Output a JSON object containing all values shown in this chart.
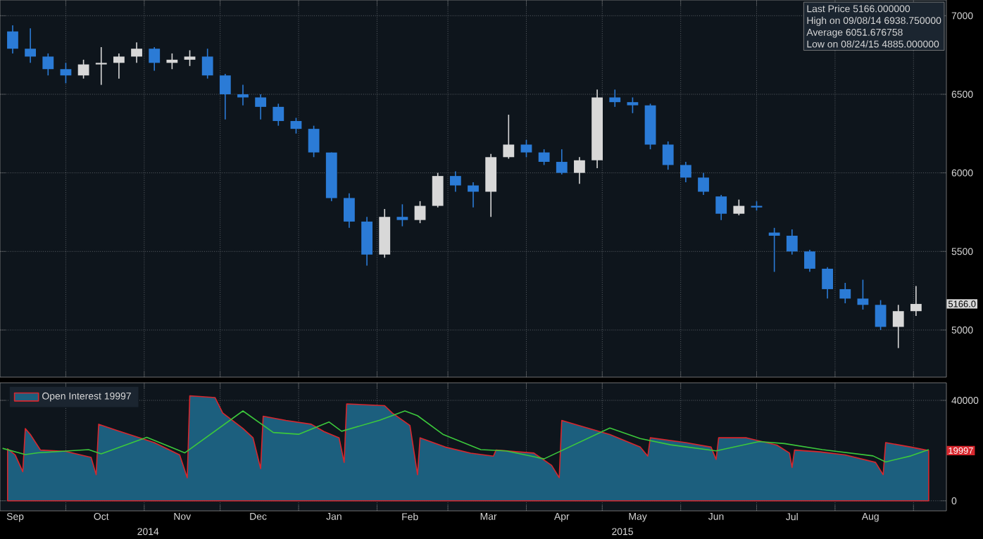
{
  "chart_data": [
    {
      "type": "candlestick",
      "xlim": [
        "2014-09-05",
        "2015-09-14"
      ],
      "ylim": [
        4700,
        7100
      ],
      "yticks": [
        5000,
        5500,
        6000,
        6500,
        7000
      ],
      "grid": true,
      "tick_labels": "y",
      "xticks": [
        {
          "value": "2014-10-01",
          "label": null
        },
        {
          "value": "2014-11-01",
          "label": null
        },
        {
          "value": "2014-12-01",
          "label": null
        },
        {
          "value": "2015-01-01",
          "label": null
        },
        {
          "value": "2015-02-01",
          "label": null
        },
        {
          "value": "2015-03-01",
          "label": null
        },
        {
          "value": "2015-04-01",
          "label": null
        },
        {
          "value": "2015-05-01",
          "label": null
        },
        {
          "value": "2015-06-01",
          "label": null
        },
        {
          "value": "2015-07-01",
          "label": null
        },
        {
          "value": "2015-08-01",
          "label": null
        },
        {
          "value": "2015-09-01",
          "label": null
        }
      ],
      "x": [
        "2014-09-10",
        "2014-09-17",
        "2014-09-24",
        "2014-10-01",
        "2014-10-08",
        "2014-10-15",
        "2014-10-22",
        "2014-10-29",
        "2014-11-05",
        "2014-11-12",
        "2014-11-19",
        "2014-11-26",
        "2014-12-03",
        "2014-12-10",
        "2014-12-17",
        "2014-12-24",
        "2014-12-31",
        "2015-01-07",
        "2015-01-14",
        "2015-01-21",
        "2015-01-28",
        "2015-02-04",
        "2015-02-11",
        "2015-02-18",
        "2015-02-25",
        "2015-03-04",
        "2015-03-11",
        "2015-03-18",
        "2015-03-25",
        "2015-04-01",
        "2015-04-08",
        "2015-04-15",
        "2015-04-22",
        "2015-04-29",
        "2015-05-06",
        "2015-05-13",
        "2015-05-20",
        "2015-05-27",
        "2015-06-03",
        "2015-06-10",
        "2015-06-17",
        "2015-06-24",
        "2015-07-01",
        "2015-07-08",
        "2015-07-15",
        "2015-07-22",
        "2015-07-29",
        "2015-08-05",
        "2015-08-12",
        "2015-08-19",
        "2015-08-26",
        "2015-09-02"
      ],
      "ohlc": [
        [
          6900,
          6938.75,
          6760,
          6790
        ],
        [
          6790,
          6920,
          6700,
          6740
        ],
        [
          6740,
          6760,
          6620,
          6660
        ],
        [
          6660,
          6700,
          6570,
          6620
        ],
        [
          6620,
          6720,
          6600,
          6690
        ],
        [
          6690,
          6800,
          6560,
          6700
        ],
        [
          6700,
          6760,
          6600,
          6740
        ],
        [
          6740,
          6830,
          6700,
          6790
        ],
        [
          6790,
          6800,
          6650,
          6700
        ],
        [
          6700,
          6760,
          6660,
          6720
        ],
        [
          6720,
          6780,
          6680,
          6740
        ],
        [
          6740,
          6790,
          6600,
          6620
        ],
        [
          6620,
          6630,
          6340,
          6500
        ],
        [
          6500,
          6560,
          6430,
          6480
        ],
        [
          6480,
          6500,
          6340,
          6420
        ],
        [
          6420,
          6440,
          6300,
          6330
        ],
        [
          6330,
          6350,
          6250,
          6280
        ],
        [
          6280,
          6300,
          6100,
          6130
        ],
        [
          6130,
          6130,
          5820,
          5840
        ],
        [
          5840,
          5870,
          5650,
          5690
        ],
        [
          5690,
          5720,
          5410,
          5480
        ],
        [
          5480,
          5770,
          5460,
          5720
        ],
        [
          5720,
          5800,
          5660,
          5700
        ],
        [
          5700,
          5820,
          5680,
          5790
        ],
        [
          5790,
          6000,
          5780,
          5980
        ],
        [
          5980,
          6010,
          5880,
          5920
        ],
        [
          5920,
          5940,
          5780,
          5880
        ],
        [
          5880,
          6120,
          5720,
          6100
        ],
        [
          6100,
          6370,
          6090,
          6180
        ],
        [
          6180,
          6210,
          6100,
          6130
        ],
        [
          6130,
          6150,
          6050,
          6070
        ],
        [
          6070,
          6150,
          5990,
          6000
        ],
        [
          6000,
          6100,
          5930,
          6080
        ],
        [
          6080,
          6530,
          6030,
          6480
        ],
        [
          6480,
          6530,
          6420,
          6450
        ],
        [
          6450,
          6480,
          6380,
          6430
        ],
        [
          6430,
          6440,
          6150,
          6180
        ],
        [
          6180,
          6200,
          6020,
          6050
        ],
        [
          6050,
          6070,
          5940,
          5970
        ],
        [
          5970,
          6000,
          5860,
          5880
        ],
        [
          5850,
          5860,
          5700,
          5740
        ],
        [
          5740,
          5830,
          5730,
          5790
        ],
        [
          5790,
          5820,
          5760,
          5780
        ],
        [
          5620,
          5650,
          5370,
          5600
        ],
        [
          5600,
          5640,
          5480,
          5500
        ],
        [
          5500,
          5510,
          5370,
          5390
        ],
        [
          5390,
          5400,
          5200,
          5260
        ],
        [
          5260,
          5300,
          5170,
          5200
        ],
        [
          5200,
          5320,
          5130,
          5160
        ],
        [
          5160,
          5190,
          5000,
          5020
        ],
        [
          5020,
          5160,
          4885,
          5120
        ],
        [
          5120,
          5280,
          5090,
          5166
        ]
      ],
      "colors": [
        "#2b7bd6",
        "#2b7bd6",
        "#2b7bd6",
        "#2b7bd6",
        "#d8d8d8",
        "#d8d8d8",
        "#d8d8d8",
        "#d8d8d8",
        "#2b7bd6",
        "#d8d8d8",
        "#d8d8d8",
        "#2b7bd6",
        "#2b7bd6",
        "#2b7bd6",
        "#2b7bd6",
        "#2b7bd6",
        "#2b7bd6",
        "#2b7bd6",
        "#2b7bd6",
        "#2b7bd6",
        "#2b7bd6",
        "#d8d8d8",
        "#2b7bd6",
        "#d8d8d8",
        "#d8d8d8",
        "#2b7bd6",
        "#2b7bd6",
        "#d8d8d8",
        "#d8d8d8",
        "#2b7bd6",
        "#2b7bd6",
        "#2b7bd6",
        "#d8d8d8",
        "#d8d8d8",
        "#2b7bd6",
        "#2b7bd6",
        "#2b7bd6",
        "#2b7bd6",
        "#2b7bd6",
        "#2b7bd6",
        "#2b7bd6",
        "#d8d8d8",
        "#2b7bd6",
        "#2b7bd6",
        "#2b7bd6",
        "#2b7bd6",
        "#2b7bd6",
        "#2b7bd6",
        "#2b7bd6",
        "#2b7bd6",
        "#d8d8d8",
        "#d8d8d8"
      ],
      "annotations": [
        "Last Price 5166.000000",
        "High on 09/08/14 6938.750000",
        "Average 6051.676758",
        "Low on 08/24/15 4885.000000",
        {
          "text": "5166.0",
          "y": 5166
        }
      ]
    },
    {
      "type": "area",
      "xlim": [
        "2014-09-05",
        "2015-09-14"
      ],
      "ylim": [
        -4000,
        47000
      ],
      "yticks": [
        0,
        40000
      ],
      "grid": true,
      "legend": "top left",
      "xticks": [
        {
          "value": "2014-09-11",
          "label": "Sep"
        },
        {
          "value": "2014-10-01",
          "label": null
        },
        {
          "value": "2014-10-15",
          "label": "Oct"
        },
        {
          "value": "2014-11-01",
          "label": null
        },
        {
          "value": "2014-11-16",
          "label": "Nov"
        },
        {
          "value": "2014-12-01",
          "label": null
        },
        {
          "value": "2014-12-16",
          "label": "Dec"
        },
        {
          "value": "2015-01-01",
          "label": null
        },
        {
          "value": "2015-01-15",
          "label": "Jan"
        },
        {
          "value": "2015-02-01",
          "label": null
        },
        {
          "value": "2015-02-14",
          "label": "Feb"
        },
        {
          "value": "2015-03-01",
          "label": null
        },
        {
          "value": "2015-03-17",
          "label": "Mar"
        },
        {
          "value": "2015-04-01",
          "label": null
        },
        {
          "value": "2015-04-15",
          "label": "Apr"
        },
        {
          "value": "2015-05-01",
          "label": null
        },
        {
          "value": "2015-05-15",
          "label": "May"
        },
        {
          "value": "2015-06-01",
          "label": null
        },
        {
          "value": "2015-06-15",
          "label": "Jun"
        },
        {
          "value": "2015-07-01",
          "label": null
        },
        {
          "value": "2015-07-15",
          "label": "Jul"
        },
        {
          "value": "2015-08-01",
          "label": null
        },
        {
          "value": "2015-08-15",
          "label": "Aug"
        },
        {
          "value": "2015-09-01",
          "label": null
        }
      ],
      "series": [
        {
          "name": "Open Interest 19997",
          "color": "#d8272e",
          "x": [
            "2014-09-08",
            "2014-09-11",
            "2014-09-14",
            "2014-09-15",
            "2014-09-17",
            "2014-09-21",
            "2014-10-01",
            "2014-10-11",
            "2014-10-13",
            "2014-10-14",
            "2014-10-21",
            "2014-11-05",
            "2014-11-15",
            "2014-11-18",
            "2014-11-19",
            "2014-11-29",
            "2014-12-02",
            "2014-12-10",
            "2014-12-14",
            "2014-12-17",
            "2014-12-18",
            "2014-12-27",
            "2015-01-06",
            "2015-01-11",
            "2015-01-17",
            "2015-01-19",
            "2015-01-20",
            "2015-02-04",
            "2015-02-07",
            "2015-02-14",
            "2015-02-17",
            "2015-02-18",
            "2015-02-28",
            "2015-03-10",
            "2015-03-19",
            "2015-03-20",
            "2015-04-04",
            "2015-04-11",
            "2015-04-14",
            "2015-04-15",
            "2015-04-23",
            "2015-05-04",
            "2015-05-16",
            "2015-05-19",
            "2015-05-20",
            "2015-06-03",
            "2015-06-13",
            "2015-06-15",
            "2015-06-16",
            "2015-06-27",
            "2015-07-09",
            "2015-07-14",
            "2015-07-15",
            "2015-07-16",
            "2015-07-26",
            "2015-08-05",
            "2015-08-17",
            "2015-08-20",
            "2015-08-21",
            "2015-08-31",
            "2015-09-07"
          ],
          "values": [
            20700,
            18300,
            11600,
            28800,
            26400,
            20200,
            19700,
            17300,
            10400,
            30500,
            28100,
            23200,
            18300,
            9200,
            41800,
            41100,
            35000,
            28800,
            25100,
            12800,
            33700,
            32000,
            30500,
            27600,
            25100,
            15300,
            38600,
            37900,
            35000,
            30000,
            10400,
            25100,
            21400,
            19000,
            17800,
            20200,
            19000,
            14100,
            9200,
            32000,
            29600,
            26400,
            21400,
            17800,
            25100,
            23200,
            21400,
            16500,
            25100,
            25100,
            22200,
            19000,
            13300,
            20200,
            19500,
            18300,
            15300,
            10400,
            23200,
            21400,
            20000
          ]
        },
        {
          "type": "line",
          "color": "#3cc83c",
          "x": [
            "2014-09-06",
            "2014-09-15",
            "2014-09-20",
            "2014-10-10",
            "2014-10-15",
            "2014-11-02",
            "2014-11-17",
            "2014-12-10",
            "2014-12-22",
            "2015-01-01",
            "2015-01-13",
            "2015-01-18",
            "2015-02-02",
            "2015-02-12",
            "2015-02-17",
            "2015-02-27",
            "2015-03-14",
            "2015-03-24",
            "2015-04-08",
            "2015-05-04",
            "2015-05-16",
            "2015-05-28",
            "2015-06-15",
            "2015-07-02",
            "2015-07-12",
            "2015-07-27",
            "2015-08-16",
            "2015-08-21",
            "2015-08-31",
            "2015-09-07"
          ],
          "values": [
            20900,
            18400,
            19100,
            20400,
            18700,
            25300,
            19100,
            35800,
            27200,
            26500,
            31400,
            27700,
            32100,
            35800,
            33900,
            26500,
            20400,
            19900,
            16700,
            29000,
            24800,
            22300,
            19900,
            23600,
            22800,
            20400,
            17900,
            15500,
            17900,
            20400
          ]
        }
      ],
      "annotations": [
        "2014",
        "2015",
        {
          "text": "19997",
          "y": 19997
        }
      ]
    }
  ]
}
